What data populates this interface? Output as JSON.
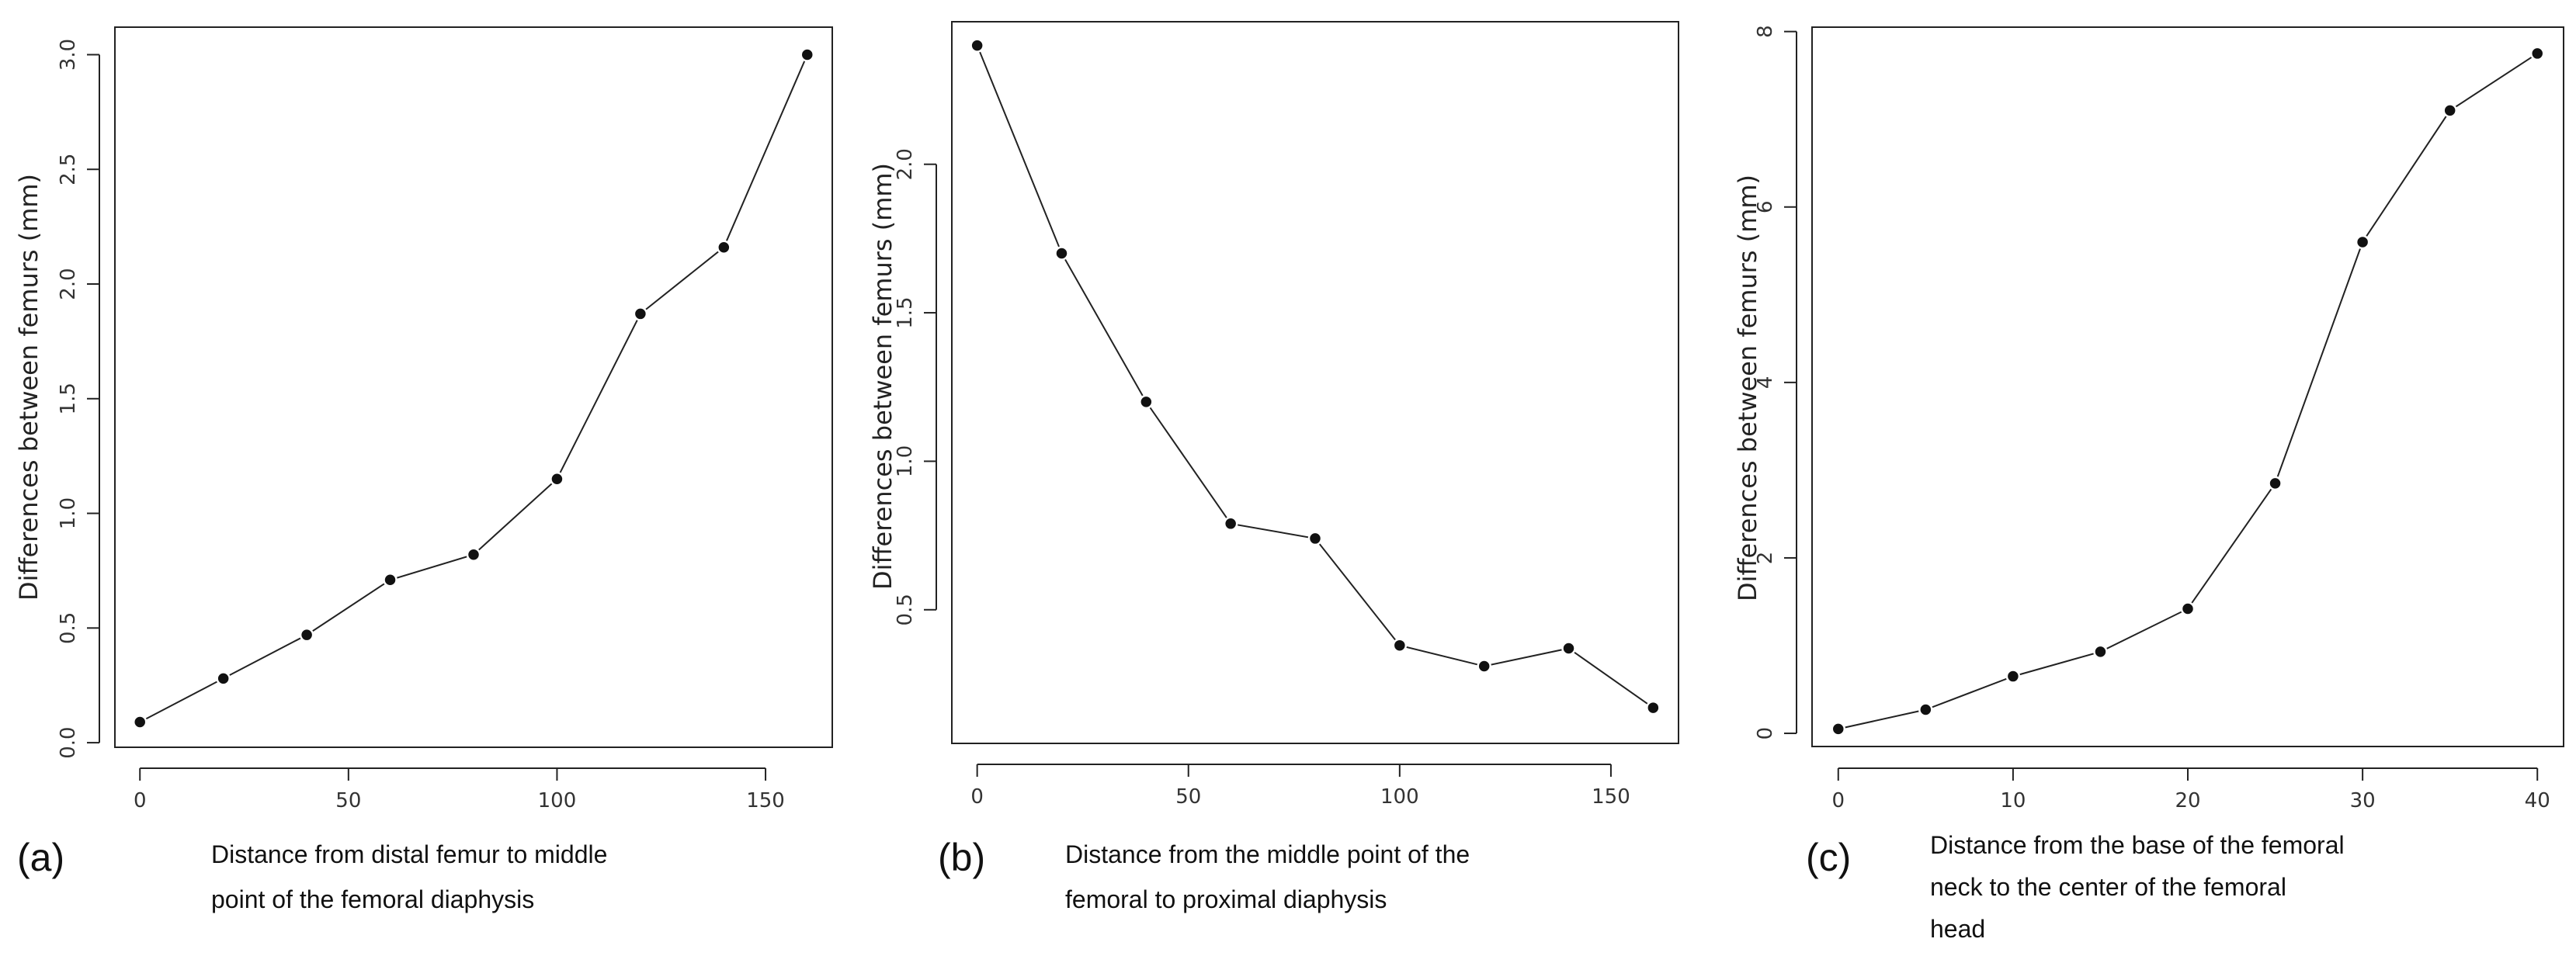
{
  "chart_data": [
    {
      "type": "line",
      "panel_label": "(a)",
      "xlabel_lines": [
        "Distance from distal femur to middle",
        "point of the femoral diaphysis"
      ],
      "ylabel": "Differences between femurs (mm)",
      "xlim": [
        -6,
        166
      ],
      "ylim": [
        -0.02,
        3.12
      ],
      "xticks": [
        0,
        50,
        100,
        150
      ],
      "yticks": [
        0.0,
        0.5,
        1.0,
        1.5,
        2.0,
        2.5,
        3.0
      ],
      "ytick_labels": [
        "0.0",
        "0.5",
        "1.0",
        "1.5",
        "2.0",
        "2.5",
        "3.0"
      ],
      "x": [
        0,
        20,
        40,
        60,
        80,
        100,
        120,
        140,
        160
      ],
      "y": [
        0.09,
        0.28,
        0.47,
        0.71,
        0.82,
        1.15,
        1.87,
        2.16,
        3.0
      ],
      "grid": false
    },
    {
      "type": "line",
      "panel_label": "(b)",
      "xlabel_lines": [
        "Distance from the middle point of the",
        "femoral to proximal diaphysis"
      ],
      "ylabel": "Differences between femurs (mm)",
      "xlim": [
        -6,
        166
      ],
      "ylim": [
        0.05,
        2.48
      ],
      "xticks": [
        0,
        50,
        100,
        150
      ],
      "yticks": [
        0.5,
        1.0,
        1.5,
        2.0
      ],
      "ytick_labels": [
        "0.5",
        "1.0",
        "1.5",
        "2.0"
      ],
      "x": [
        0,
        20,
        40,
        60,
        80,
        100,
        120,
        140,
        160
      ],
      "y": [
        2.4,
        1.7,
        1.2,
        0.79,
        0.74,
        0.38,
        0.31,
        0.37,
        0.17
      ],
      "grid": false
    },
    {
      "type": "line",
      "panel_label": "(c)",
      "xlabel_lines": [
        "Distance from the base of the femoral",
        "neck to the center of the femoral",
        "head"
      ],
      "ylabel": "Differences between femurs (mm)",
      "xlim": [
        -1.5,
        41.5
      ],
      "ylim": [
        -0.15,
        8.05
      ],
      "xticks": [
        0,
        10,
        20,
        30,
        40
      ],
      "yticks": [
        0,
        2,
        4,
        6,
        8
      ],
      "ytick_labels": [
        "0",
        "2",
        "4",
        "6",
        "8"
      ],
      "x": [
        0,
        5,
        10,
        15,
        20,
        25,
        30,
        35,
        40
      ],
      "y": [
        0.05,
        0.27,
        0.65,
        0.93,
        1.42,
        2.85,
        5.6,
        7.1,
        7.75
      ],
      "grid": false
    }
  ]
}
